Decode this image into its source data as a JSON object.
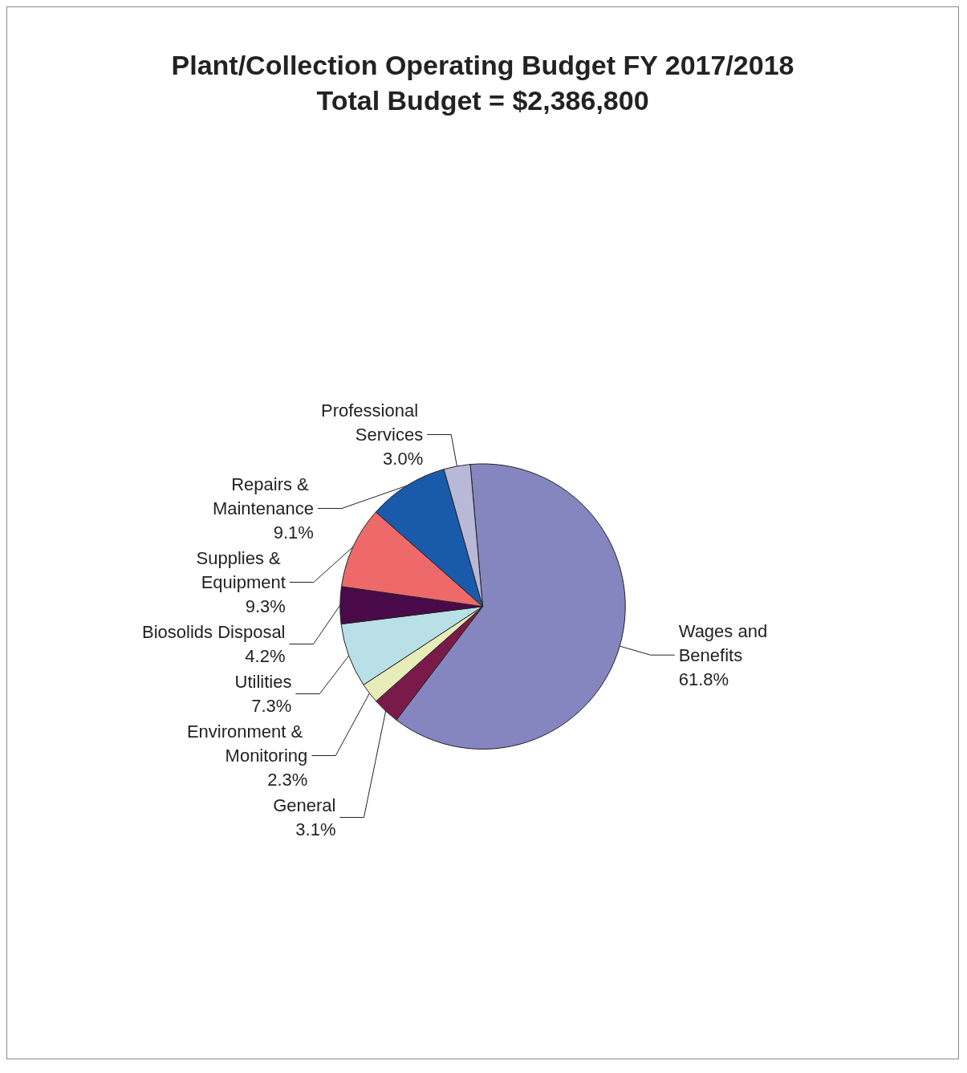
{
  "chart_data": {
    "type": "pie",
    "title": "Plant/Collection Operating Budget FY 2017/2018",
    "subtitle": "Total Budget = $2,386,800",
    "categories": [
      "Wages and Benefits",
      "General",
      "Environment & Monitoring",
      "Utilities",
      "Biosolids Disposal",
      "Supplies & Equipment",
      "Repairs & Maintenance",
      "Professional Services"
    ],
    "values": [
      61.8,
      3.1,
      2.3,
      7.3,
      4.2,
      9.3,
      9.1,
      3.0
    ],
    "colors": [
      "#8585c0",
      "#7a1a4a",
      "#e8ecb8",
      "#b8e0e6",
      "#4a0a4a",
      "#ee6a6a",
      "#1a5aaa",
      "#b8b8d8"
    ],
    "value_labels": [
      "61.8%",
      "3.1%",
      "2.3%",
      "7.3%",
      "4.2%",
      "9.3%",
      "9.1%",
      "3.0%"
    ]
  }
}
